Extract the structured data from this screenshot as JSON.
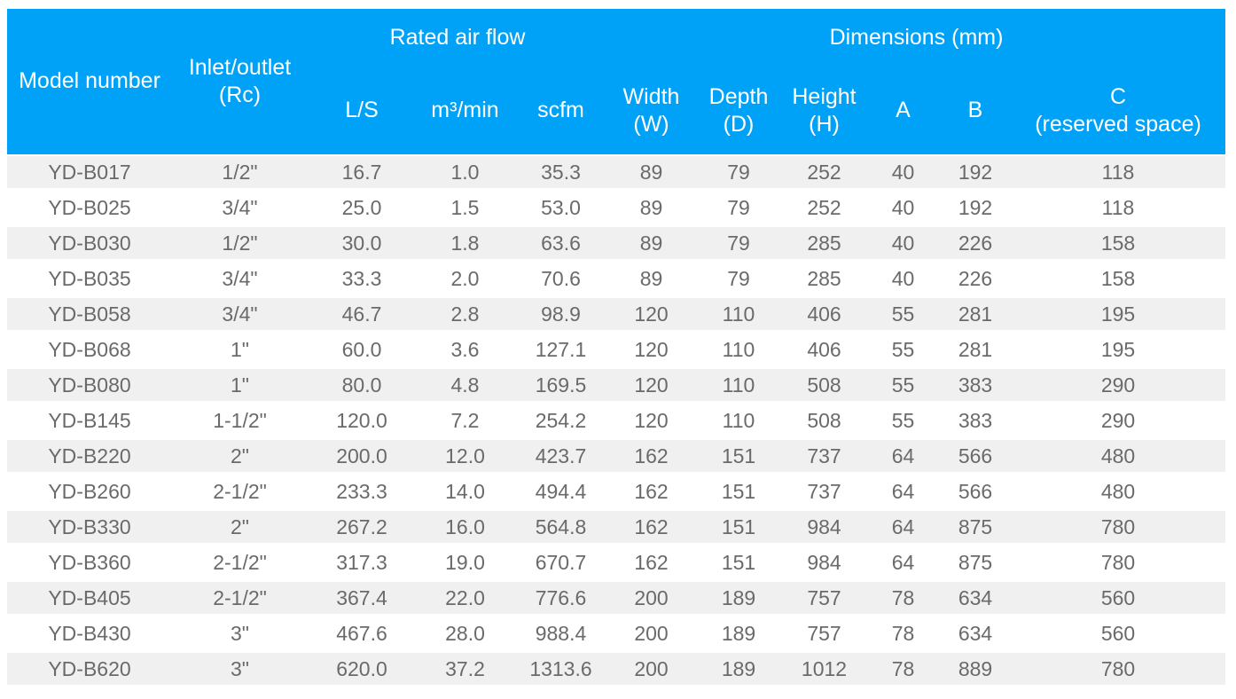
{
  "table": {
    "group_headers": {
      "rated_air_flow": "Rated air flow",
      "dimensions": "Dimensions (mm)"
    },
    "column_headers": {
      "model": "Model number",
      "inlet_line1": "Inlet/outlet",
      "inlet_line2": "(Rc)",
      "ls": "L/S",
      "m3min": "m³/min",
      "scfm": "scfm",
      "width_line1": "Width",
      "width_line2": "(W)",
      "depth_line1": "Depth",
      "depth_line2": "(D)",
      "height_line1": "Height",
      "height_line2": "(H)",
      "a": "A",
      "b": "B",
      "c_line1": "C",
      "c_line2": "(reserved space)"
    },
    "column_ids": [
      "model-number",
      "inlet-outlet-rc",
      "l-s",
      "m3-min",
      "scfm",
      "width-w",
      "depth-d",
      "height-h",
      "a",
      "b",
      "c-reserved-space"
    ],
    "rows": [
      [
        "YD-B017",
        "1/2\"",
        "16.7",
        "1.0",
        "35.3",
        "89",
        "79",
        "252",
        "40",
        "192",
        "118"
      ],
      [
        "YD-B025",
        "3/4\"",
        "25.0",
        "1.5",
        "53.0",
        "89",
        "79",
        "252",
        "40",
        "192",
        "118"
      ],
      [
        "YD-B030",
        "1/2\"",
        "30.0",
        "1.8",
        "63.6",
        "89",
        "79",
        "285",
        "40",
        "226",
        "158"
      ],
      [
        "YD-B035",
        "3/4\"",
        "33.3",
        "2.0",
        "70.6",
        "89",
        "79",
        "285",
        "40",
        "226",
        "158"
      ],
      [
        "YD-B058",
        "3/4\"",
        "46.7",
        "2.8",
        "98.9",
        "120",
        "110",
        "406",
        "55",
        "281",
        "195"
      ],
      [
        "YD-B068",
        "1\"",
        "60.0",
        "3.6",
        "127.1",
        "120",
        "110",
        "406",
        "55",
        "281",
        "195"
      ],
      [
        "YD-B080",
        "1\"",
        "80.0",
        "4.8",
        "169.5",
        "120",
        "110",
        "508",
        "55",
        "383",
        "290"
      ],
      [
        "YD-B145",
        "1-1/2\"",
        "120.0",
        "7.2",
        "254.2",
        "120",
        "110",
        "508",
        "55",
        "383",
        "290"
      ],
      [
        "YD-B220",
        "2\"",
        "200.0",
        "12.0",
        "423.7",
        "162",
        "151",
        "737",
        "64",
        "566",
        "480"
      ],
      [
        "YD-B260",
        "2-1/2\"",
        "233.3",
        "14.0",
        "494.4",
        "162",
        "151",
        "737",
        "64",
        "566",
        "480"
      ],
      [
        "YD-B330",
        "2\"",
        "267.2",
        "16.0",
        "564.8",
        "162",
        "151",
        "984",
        "64",
        "875",
        "780"
      ],
      [
        "YD-B360",
        "2-1/2\"",
        "317.3",
        "19.0",
        "670.7",
        "162",
        "151",
        "984",
        "64",
        "875",
        "780"
      ],
      [
        "YD-B405",
        "2-1/2\"",
        "367.4",
        "22.0",
        "776.6",
        "200",
        "189",
        "757",
        "78",
        "634",
        "560"
      ],
      [
        "YD-B430",
        "3\"",
        "467.6",
        "28.0",
        "988.4",
        "200",
        "189",
        "757",
        "78",
        "634",
        "560"
      ],
      [
        "YD-B620",
        "3\"",
        "620.0",
        "37.2",
        "1313.6",
        "200",
        "189",
        "1012",
        "78",
        "889",
        "780"
      ]
    ]
  },
  "colors": {
    "header_bg": "#00a2f8",
    "header_text": "#ffffff",
    "row_stripe": "#f0f0f0",
    "row_white": "#ffffff",
    "body_text": "#6a6a6a"
  }
}
